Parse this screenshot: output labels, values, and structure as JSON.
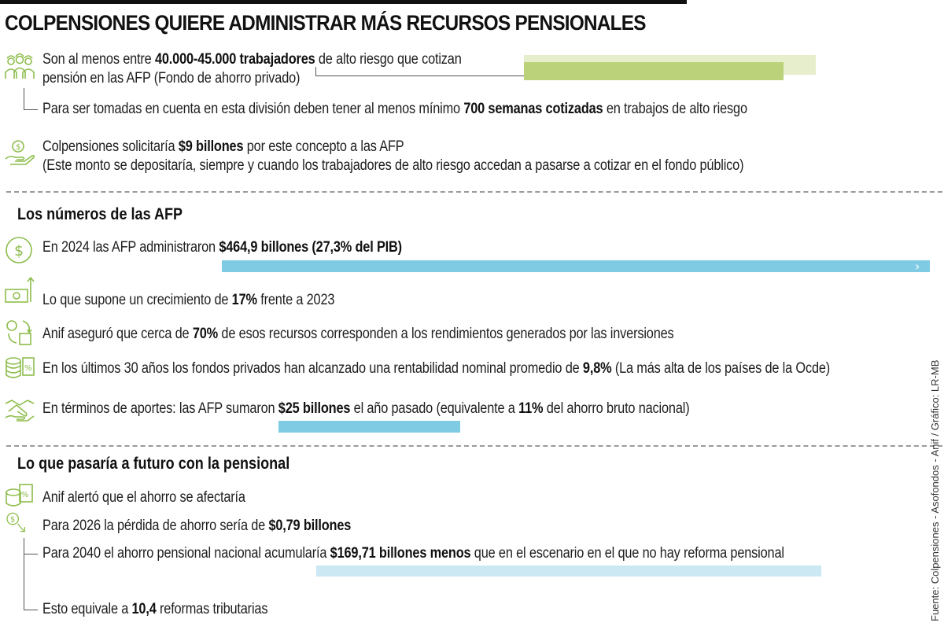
{
  "title": "COLPENSIONES QUIERE ADMINISTRAR MÁS RECURSOS PENSIONALES",
  "top": {
    "workers": {
      "pre": "Son al menos entre ",
      "bold": "40.000-45.000 trabajadores",
      "post": " de alto riesgo que cotizan",
      "line2": "pensión en las AFP (Fondo de ahorro privado)"
    },
    "weeks": {
      "pre": "Para ser tomadas en cuenta en esta división deben tener al menos mínimo ",
      "bold": "700 semanas cotizadas",
      "post": " en trabajos de alto riesgo"
    },
    "request": {
      "pre": "Colpensiones solicitaría ",
      "bold": "$9 billones",
      "post": " por este concepto a las AFP",
      "line2": "(Este monto se depositaría, siempre y cuando los trabajadores de alto riesgo accedan a pasarse a cotizar en el fondo público)"
    }
  },
  "afp": {
    "heading": "Los números de las AFP",
    "managed": {
      "pre": "En 2024 las AFP administraron ",
      "bold": "$464,9 billones (27,3% del PIB)"
    },
    "growth": {
      "pre": "Lo que supone un crecimiento de ",
      "bold": "17%",
      "post": " frente a 2023"
    },
    "returns": {
      "pre": "Anif aseguró que cerca de ",
      "bold": "70%",
      "post": " de esos recursos corresponden a los rendimientos generados por las inversiones"
    },
    "profitability": {
      "pre": "En los últimos 30 años los fondos privados han alcanzado una rentabilidad nominal promedio de ",
      "bold": "9,8%",
      "post": " (La más alta de los países de la Ocde)"
    },
    "contributions": {
      "pre": "En términos de aportes: las AFP sumaron ",
      "bold": "$25 billones",
      "mid": " el año pasado (equivalente a ",
      "bold2": "11%",
      "post": " del ahorro bruto nacional)"
    }
  },
  "future": {
    "heading": "Lo que pasaría a futuro con la pensional",
    "alert": "Anif alertó que el ahorro se afectaría",
    "y2026": {
      "pre": "Para 2026 la pérdida de ahorro sería de ",
      "bold": "$0,79 billones"
    },
    "y2040": {
      "pre": "Para 2040 el ahorro pensional nacional acumularía ",
      "bold": "$169,71 billones menos",
      "post": " que en el escenario en el que no hay reforma pensional"
    },
    "reforms": {
      "pre": "Esto equivale a ",
      "bold": "10,4",
      "post": " reformas tributarias"
    }
  },
  "source": "Fuente: Colpensiones - Asofondos - Anif / Gráfico: LR-MB",
  "colors": {
    "green": "#bcd27a",
    "green_light": "#e6eecb",
    "blue": "#7ecbe3",
    "blue_light": "#cbe8f3",
    "icon": "#8dbd4c"
  },
  "icons": [
    "workers-icon",
    "money-hand-icon",
    "dollar-circle-icon",
    "money-growth-icon",
    "chart-cycle-icon",
    "coins-percent-icon",
    "handshake-icon",
    "percent-box-icon",
    "falling-dollar-icon"
  ]
}
